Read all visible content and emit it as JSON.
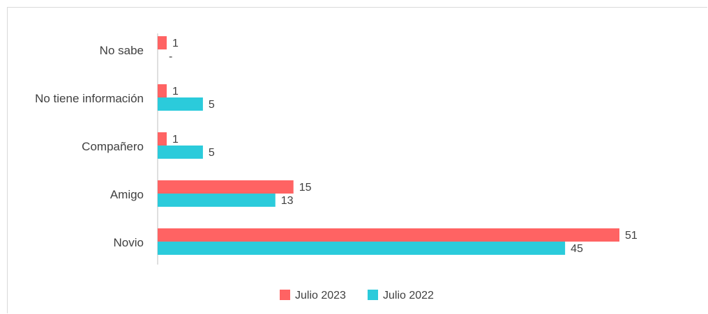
{
  "chart_data": {
    "type": "bar",
    "orientation": "horizontal",
    "categories": [
      "No sabe",
      "No tiene información",
      "Compañero",
      "Amigo",
      "Novio"
    ],
    "series": [
      {
        "name": "Julio 2023",
        "color": "#FF6363",
        "values": [
          1,
          1,
          1,
          15,
          51
        ],
        "labels": [
          "1",
          "1",
          "1",
          "15",
          "51"
        ]
      },
      {
        "name": "Julio 2022",
        "color": "#2BCBDB",
        "values": [
          0,
          5,
          5,
          13,
          45
        ],
        "labels": [
          "-",
          "5",
          "5",
          "13",
          "45"
        ]
      }
    ],
    "xlim": [
      0,
      51
    ],
    "grid": false,
    "legend": "bottom"
  }
}
